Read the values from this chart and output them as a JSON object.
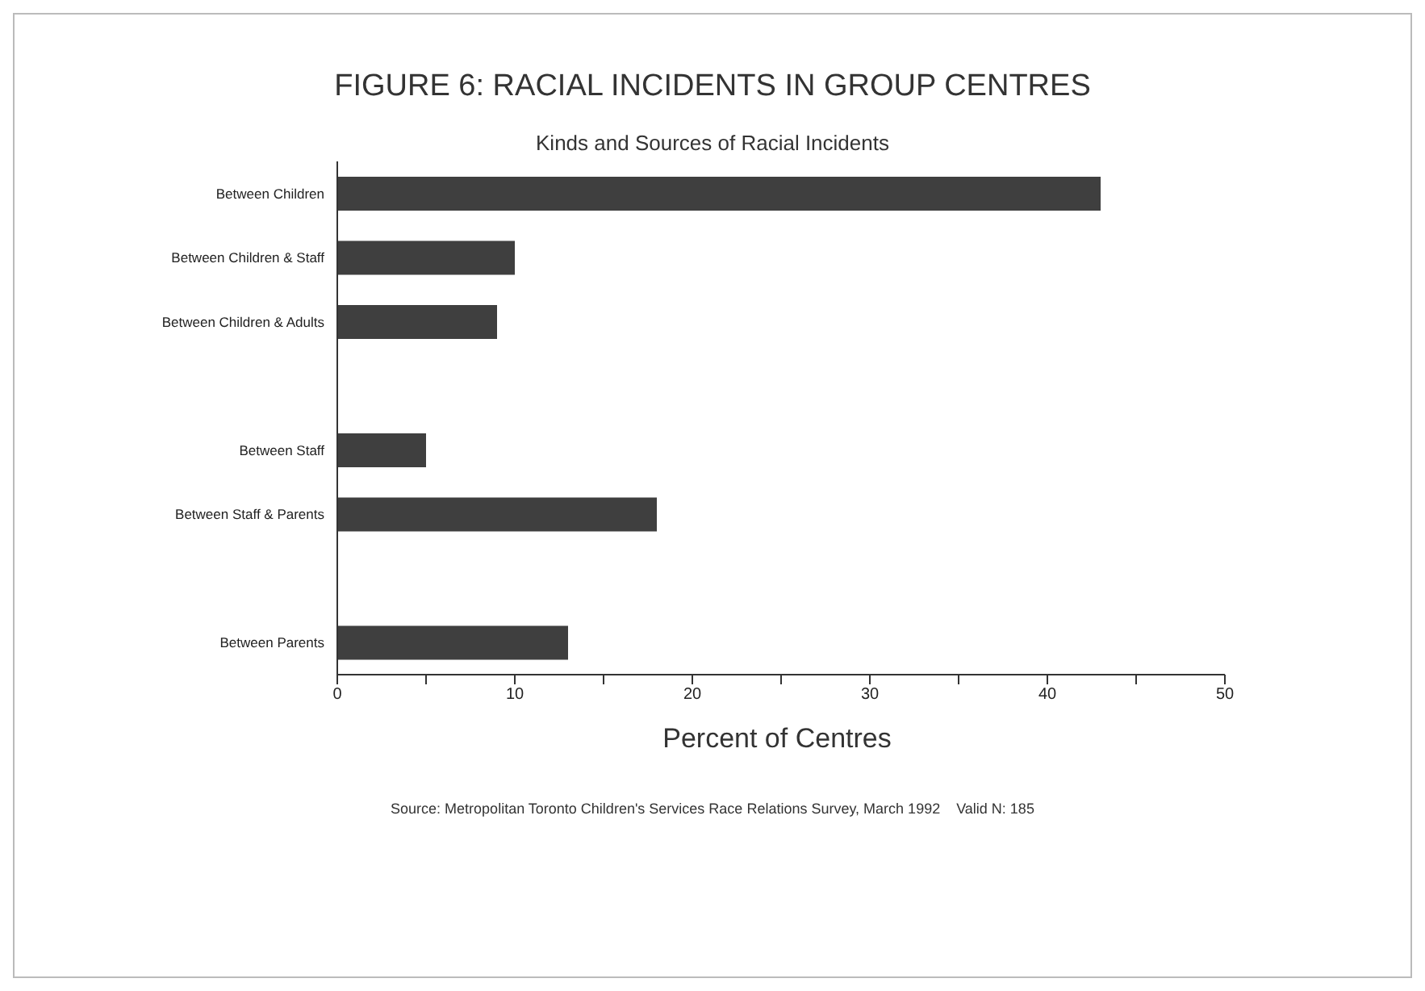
{
  "chart_data": {
    "type": "bar",
    "orientation": "horizontal",
    "title": "FIGURE 6: RACIAL INCIDENTS IN GROUP CENTRES",
    "subtitle": "Kinds and Sources of Racial Incidents",
    "xlabel": "Percent of Centres",
    "categories": [
      "Between Children",
      "Between Children & Staff",
      "Between Children & Adults",
      null,
      "Between Staff",
      "Between Staff & Parents",
      null,
      "Between Parents"
    ],
    "values": [
      43,
      10,
      9,
      null,
      5,
      18,
      null,
      13
    ],
    "color": "#3f3f3f",
    "xlim": [
      0,
      50
    ],
    "xticks": [
      0,
      {
        "value": 5,
        "label": null
      },
      10,
      {
        "value": 15,
        "label": null
      },
      20,
      {
        "value": 25,
        "label": null
      },
      30,
      {
        "value": 35,
        "label": null
      },
      40,
      {
        "value": 45,
        "label": null
      },
      50
    ],
    "grid": false,
    "legend": false,
    "annotations": [
      "Source: Metropolitan Toronto Children's Services Race Relations Survey, March 1992    Valid N: 185"
    ]
  }
}
